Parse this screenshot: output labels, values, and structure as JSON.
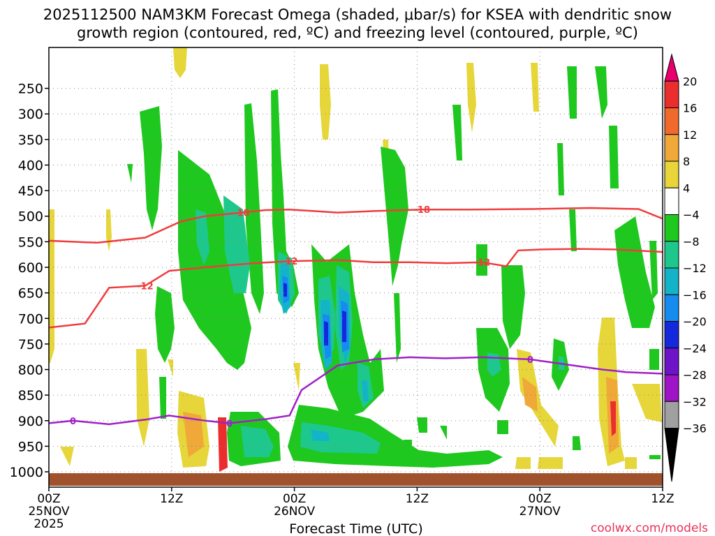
{
  "chart_data": {
    "type": "heatmap",
    "title_line1": "2025112500 NAM3KM Forecast Omega (shaded, μbar/s) for KSEA with dendritic snow",
    "title_line2": "growth region (contoured, red, ºC) and freezing level (contoured, purple, ºC)",
    "xlabel": "Forecast Time (UTC)",
    "credit": "coolwx.com/models",
    "x_range_hours": [
      0,
      51
    ],
    "y_range_hpa": [
      1030,
      170
    ],
    "y_ticks": [
      250,
      300,
      350,
      400,
      450,
      500,
      550,
      600,
      650,
      700,
      750,
      800,
      850,
      900,
      950,
      1000
    ],
    "x_ticks": [
      {
        "hour": 0,
        "label": "00Z",
        "sub": "25NOV",
        "sub2": "2025"
      },
      {
        "hour": 10.2,
        "label": "12Z",
        "sub": "",
        "sub2": ""
      },
      {
        "hour": 20.4,
        "label": "00Z",
        "sub": "26NOV",
        "sub2": ""
      },
      {
        "hour": 30.6,
        "label": "12Z",
        "sub": "",
        "sub2": ""
      },
      {
        "hour": 40.8,
        "label": "00Z",
        "sub": "27NOV",
        "sub2": ""
      },
      {
        "hour": 51,
        "label": "12Z",
        "sub": "",
        "sub2": ""
      }
    ],
    "colorbar": {
      "labels": [
        "20",
        "16",
        "12",
        "8",
        "4",
        "−4",
        "−8",
        "−12",
        "−16",
        "−20",
        "−24",
        "−28",
        "−32",
        "−36"
      ],
      "colors": [
        "#e8006e",
        "#ec2d2d",
        "#f06a2e",
        "#f0a838",
        "#e9d43a",
        "#ffffff",
        "#1ec81e",
        "#1ec88c",
        "#14b4c8",
        "#148cf0",
        "#1428dc",
        "#6e14c8",
        "#a014c8",
        "#a0a0a0",
        "#000000"
      ]
    },
    "contours": {
      "minus18": {
        "label": "-18",
        "color": "#f03c3c",
        "points": [
          [
            0,
            548
          ],
          [
            4,
            552
          ],
          [
            8,
            542
          ],
          [
            11,
            510
          ],
          [
            13,
            500
          ],
          [
            16,
            493
          ],
          [
            18,
            488
          ],
          [
            20,
            487
          ],
          [
            22,
            490
          ],
          [
            24,
            493
          ],
          [
            27,
            490
          ],
          [
            31,
            487
          ],
          [
            35,
            487
          ],
          [
            40,
            486
          ],
          [
            45,
            484
          ],
          [
            49,
            486
          ],
          [
            51,
            505
          ]
        ]
      },
      "minus12": {
        "label": "-12",
        "color": "#f03c3c",
        "points": [
          [
            0,
            718
          ],
          [
            3,
            710
          ],
          [
            5,
            640
          ],
          [
            8,
            636
          ],
          [
            10,
            607
          ],
          [
            13,
            600
          ],
          [
            17,
            592
          ],
          [
            20,
            588
          ],
          [
            24,
            586
          ],
          [
            27,
            590
          ],
          [
            30,
            590
          ],
          [
            33,
            592
          ],
          [
            36,
            590
          ],
          [
            38,
            598
          ],
          [
            39,
            567
          ],
          [
            41,
            565
          ],
          [
            44,
            564
          ],
          [
            47,
            565
          ],
          [
            51,
            570
          ]
        ]
      },
      "zero": {
        "label": "0",
        "color": "#a020c8",
        "points": [
          [
            0,
            905
          ],
          [
            2,
            900
          ],
          [
            5,
            907
          ],
          [
            8,
            898
          ],
          [
            10,
            890
          ],
          [
            13,
            900
          ],
          [
            15,
            905
          ],
          [
            18,
            897
          ],
          [
            20,
            890
          ],
          [
            21,
            840
          ],
          [
            24,
            792
          ],
          [
            27,
            780
          ],
          [
            30,
            776
          ],
          [
            33,
            778
          ],
          [
            36,
            776
          ],
          [
            40,
            780
          ],
          [
            43,
            790
          ],
          [
            46,
            800
          ],
          [
            48,
            805
          ],
          [
            51,
            808
          ]
        ]
      }
    },
    "omega_features": [
      {
        "hour": 9.0,
        "p": 300,
        "value": -6
      },
      {
        "hour": 12.8,
        "p": 430,
        "value": -8
      },
      {
        "hour": 16.5,
        "p": 450,
        "value": -9
      },
      {
        "hour": 19.6,
        "p": 520,
        "value": -18
      },
      {
        "hour": 23.6,
        "p": 590,
        "value": -20
      },
      {
        "hour": 25.0,
        "p": 600,
        "value": -18
      },
      {
        "hour": 22.5,
        "p": 890,
        "value": -10
      },
      {
        "hour": 14.6,
        "p": 880,
        "value": 16
      },
      {
        "hour": 47.5,
        "p": 840,
        "value": 14
      },
      {
        "hour": 39.5,
        "p": 760,
        "value": 9
      }
    ],
    "terrain_color": "#a0522d"
  }
}
